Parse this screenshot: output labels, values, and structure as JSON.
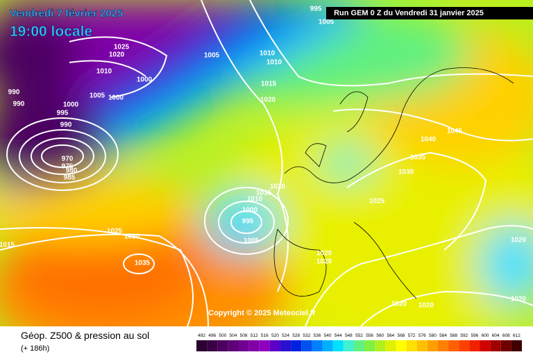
{
  "header": {
    "date": "Vendredi 7 février 2025",
    "time": "19:00 locale",
    "run": "Run GEM 0 Z du Vendredi 31 janvier 2025"
  },
  "copyright": "Copyright © 2025 Meteociel.fr",
  "footer": {
    "title": "Géop. Z500 & pression au sol",
    "lead": "(+ 186h)"
  },
  "isobar_labels": [
    "995",
    "1005",
    "1025",
    "1020",
    "1010",
    "1005",
    "1010",
    "1010",
    "1000",
    "1015",
    "1005",
    "1000",
    "990",
    "990",
    "1000",
    "995",
    "1020",
    "990",
    "1045",
    "1040",
    "1035",
    "970",
    "975",
    "980",
    "985",
    "1030",
    "1020",
    "1015",
    "1010",
    "1025",
    "1000",
    "995",
    "1025",
    "1030",
    "1005",
    "1015",
    "1020",
    "1020",
    "1020",
    "1035",
    "1020",
    "1020",
    "1020"
  ],
  "color_scale": {
    "values": [
      492,
      496,
      500,
      504,
      508,
      512,
      516,
      520,
      524,
      528,
      532,
      536,
      540,
      544,
      548,
      552,
      556,
      560,
      564,
      568,
      572,
      576,
      580,
      584,
      588,
      592,
      596,
      600,
      604,
      608,
      612
    ],
    "colors": [
      "#2a0030",
      "#3a0045",
      "#4b0060",
      "#5e0078",
      "#700090",
      "#8000a8",
      "#9000c0",
      "#5a00c8",
      "#2a10d0",
      "#0020e0",
      "#0050f0",
      "#0080ff",
      "#00b0ff",
      "#00e0ff",
      "#40f0d0",
      "#60f080",
      "#80f040",
      "#b0f020",
      "#e0f000",
      "#ffff00",
      "#ffe000",
      "#ffc000",
      "#ffa000",
      "#ff8000",
      "#ff6000",
      "#ff4000",
      "#f02000",
      "#d00000",
      "#a00000",
      "#700000",
      "#400000"
    ]
  }
}
